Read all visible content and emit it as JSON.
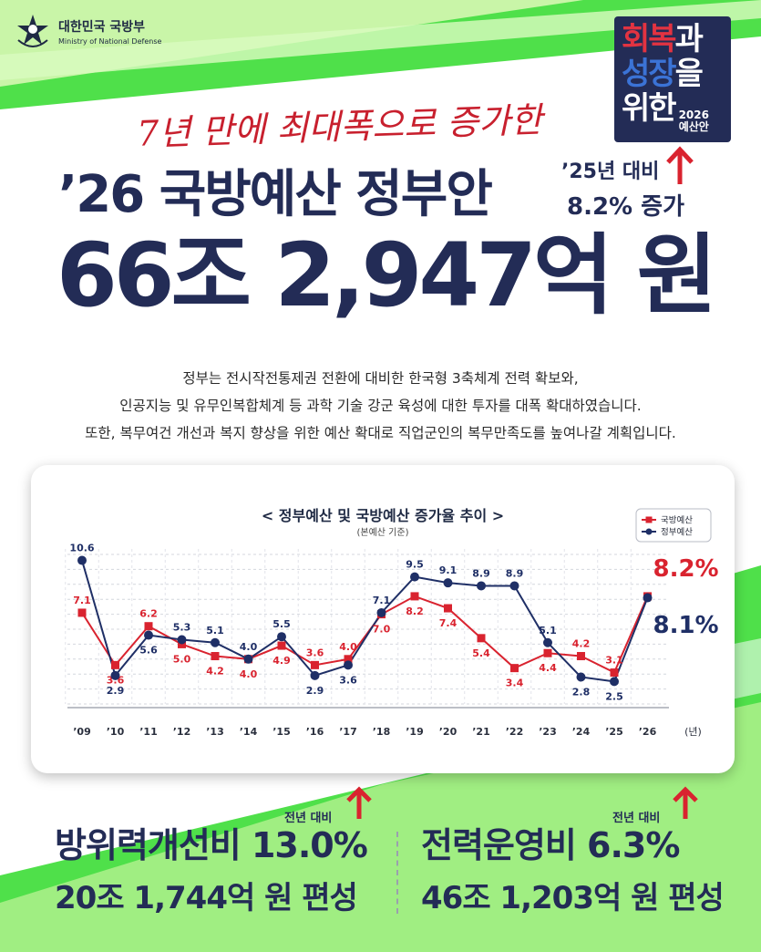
{
  "header": {
    "org_ko": "대한민국 국방부",
    "org_en": "Ministry of National Defense"
  },
  "badge": {
    "w1": "회복",
    "w1b": "과",
    "w2": "성장",
    "w2b": "을",
    "w3": "위한",
    "year": "2026",
    "label": "예산안"
  },
  "headline": {
    "tagline": "7년 만에 최대폭으로 증가한",
    "title": "’26 국방예산 정부안",
    "compare_line1": "’25년 대비",
    "compare_line2": "8.2% 증가",
    "amount": "66조 2,947억 원"
  },
  "description": [
    "정부는 전시작전통제권 전환에 대비한 한국형 3축체계 전력 확보와,",
    "인공지능 및 유무인복합체계 등 과학 기술 강군 육성에 대한 투자를 대폭 확대하였습니다.",
    "또한, 복무여건 개선과 복지 향상을 위한 예산 확대로 직업군인의 복무만족도를 높여나갈 계획입니다."
  ],
  "colors": {
    "navy": "#232c56",
    "red": "#d9232f",
    "green": "#4fe04a",
    "light_green": "#c9f5a8"
  },
  "chart_data": {
    "type": "line",
    "title": "< 정부예산 및 국방예산 증가율 추이 >",
    "subtitle": "(본예산 기준)",
    "categories": [
      "’09",
      "’10",
      "’11",
      "’12",
      "’13",
      "’14",
      "’15",
      "’16",
      "’17",
      "’18",
      "’19",
      "’20",
      "’21",
      "’22",
      "’23",
      "’24",
      "’25",
      "’26"
    ],
    "unit_label": "(년)",
    "series": [
      {
        "name": "국방예산",
        "color": "#d9232f",
        "marker": "square",
        "values": [
          7.1,
          3.6,
          6.2,
          5.0,
          4.2,
          4.0,
          4.9,
          3.6,
          4.0,
          7.0,
          8.2,
          7.4,
          5.4,
          3.4,
          4.4,
          4.2,
          3.1,
          8.2
        ],
        "labels": [
          "7.1",
          "3.6",
          "6.2",
          "5.0",
          "4.2",
          "4.0",
          "4.9",
          "3.6",
          "4.0",
          "7.0",
          "8.2",
          "7.4",
          "5.4",
          "3.4",
          "4.4",
          "4.2",
          "3.1",
          ""
        ]
      },
      {
        "name": "정부예산",
        "color": "#1f2f66",
        "marker": "circle",
        "values": [
          10.6,
          2.9,
          5.6,
          5.3,
          5.1,
          4.0,
          5.5,
          2.9,
          3.6,
          7.1,
          9.5,
          9.1,
          8.9,
          8.9,
          5.1,
          2.8,
          2.5,
          8.1
        ],
        "labels": [
          "10.6",
          "2.9",
          "5.6",
          "5.3",
          "5.1",
          "4.0",
          "5.5",
          "2.9",
          "3.6",
          "7.1",
          "9.5",
          "9.1",
          "8.9",
          "8.9",
          "5.1",
          "2.8",
          "2.5",
          ""
        ]
      }
    ],
    "final_labels": {
      "국방예산": "8.2%",
      "정부예산": "8.1%"
    },
    "legend_position": "top-right",
    "ylim": [
      1,
      11
    ],
    "grid": true
  },
  "stats": [
    {
      "compare": "전년 대비",
      "title": "방위력개선비 13.0%",
      "detail": "20조 1,744억 원 편성"
    },
    {
      "compare": "전년 대비",
      "title": "전력운영비 6.3%",
      "detail": "46조 1,203억 원 편성"
    }
  ]
}
